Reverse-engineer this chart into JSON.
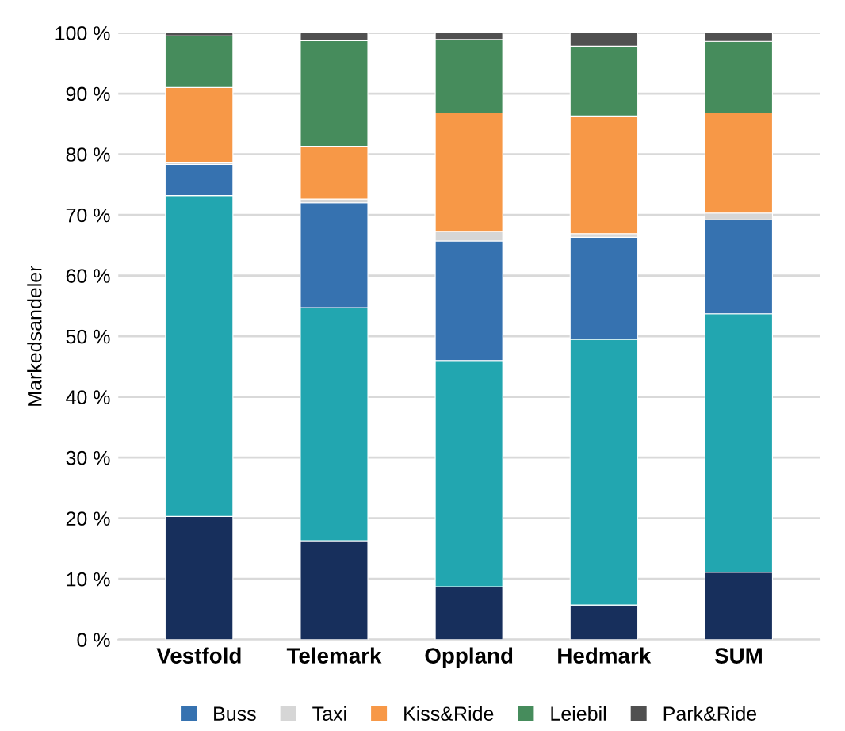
{
  "chart_data": {
    "type": "bar",
    "stacked": true,
    "ylabel": "Markedsandeler",
    "categories": [
      "Vestfold",
      "Telemark",
      "Oppland",
      "Hedmark",
      "SUM"
    ],
    "series": [
      {
        "color": "#172f5c",
        "values": [
          20.3,
          16.3,
          8.7,
          5.7,
          11.1
        ]
      },
      {
        "color": "#22a6b0",
        "values": [
          52.9,
          38.4,
          37.3,
          43.8,
          42.6
        ]
      },
      {
        "name": "Buss",
        "color": "#3672b0",
        "values": [
          5.1,
          17.3,
          19.7,
          16.8,
          15.5
        ]
      },
      {
        "name": "Taxi",
        "color": "#d6d6d6",
        "values": [
          0.4,
          0.6,
          1.6,
          0.6,
          1.1
        ]
      },
      {
        "name": "Kiss&Ride",
        "color": "#f79847",
        "values": [
          12.3,
          8.7,
          19.5,
          19.4,
          16.5
        ]
      },
      {
        "name": "Leiebil",
        "color": "#468c5c",
        "values": [
          8.5,
          17.4,
          12.1,
          11.5,
          11.8
        ]
      },
      {
        "name": "Park&Ride",
        "color": "#505050",
        "values": [
          0.5,
          1.3,
          1.1,
          2.2,
          1.4
        ]
      }
    ],
    "ylim": [
      0,
      100
    ],
    "yticks": [
      {
        "value": 0,
        "label": "0 %"
      },
      {
        "value": 10,
        "label": "10 %"
      },
      {
        "value": 20,
        "label": "20 %"
      },
      {
        "value": 30,
        "label": "30 %"
      },
      {
        "value": 40,
        "label": "40 %"
      },
      {
        "value": 50,
        "label": "50 %"
      },
      {
        "value": 60,
        "label": "60 %"
      },
      {
        "value": 70,
        "label": "70 %"
      },
      {
        "value": 80,
        "label": "80 %"
      },
      {
        "value": 90,
        "label": "90 %"
      },
      {
        "value": 100,
        "label": "100 %"
      }
    ],
    "grid": "y",
    "legend": "bottom"
  }
}
